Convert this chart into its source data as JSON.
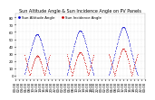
{
  "title": "Sun Altitude Angle & Sun Incidence Angle on PV Panels",
  "bg_color": "#ffffff",
  "grid_color": "#aaaaaa",
  "text_color": "#000000",
  "series": [
    {
      "name": "Sun Altitude Angle",
      "color": "#0000cc",
      "markersize": 0.8
    },
    {
      "name": "Sun Incidence Angle",
      "color": "#cc0000",
      "markersize": 0.8
    }
  ],
  "xlim_minutes": 1440,
  "num_days": 3,
  "ylim": [
    -5,
    85
  ],
  "ytick_step": 10,
  "title_fontsize": 3.5,
  "tick_fontsize": 2.8,
  "legend_fontsize": 2.8,
  "panel_tilt_deg": 30,
  "latitude_deg": 48,
  "declination_deg": 15
}
